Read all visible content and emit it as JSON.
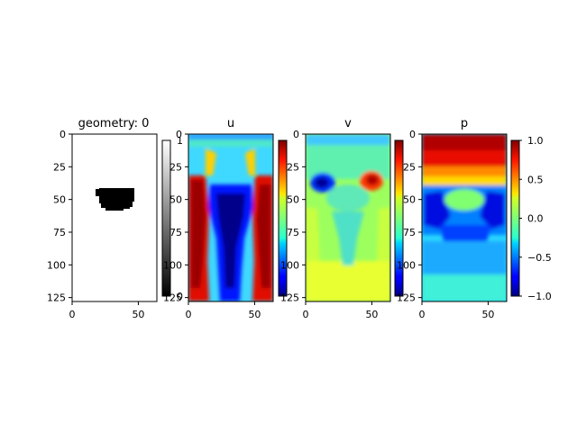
{
  "chart_data": [
    {
      "type": "heatmap",
      "title": "geometry: 0",
      "field": "geometry",
      "colormap": "gray",
      "xlim": [
        0,
        64
      ],
      "ylim": [
        128,
        0
      ],
      "xticks": [
        "0",
        "50"
      ],
      "yticks": [
        "0",
        "25",
        "50",
        "75",
        "100",
        "125"
      ],
      "colorbar": {
        "range": [
          0,
          1
        ],
        "ticks": [
          "1",
          "0"
        ]
      },
      "obstacle": {
        "x_range": [
          18,
          50
        ],
        "y_range": [
          42,
          58
        ],
        "value": 0,
        "background_value": 1
      }
    },
    {
      "type": "heatmap",
      "title": "u",
      "field": "u",
      "colormap": "jet",
      "xlim": [
        0,
        64
      ],
      "ylim": [
        128,
        0
      ],
      "xticks": [
        "0",
        "50"
      ],
      "yticks": [
        "0",
        "25",
        "50",
        "75",
        "100",
        "125"
      ],
      "colorbar": {
        "range": [
          0,
          1
        ],
        "ticks": [
          "1",
          "0"
        ]
      }
    },
    {
      "type": "heatmap",
      "title": "v",
      "field": "v",
      "colormap": "jet",
      "xlim": [
        0,
        64
      ],
      "ylim": [
        128,
        0
      ],
      "xticks": [
        "0",
        "50"
      ],
      "yticks": [
        "0",
        "25",
        "50",
        "75",
        "100",
        "125"
      ],
      "colorbar": {
        "range": [
          0,
          1
        ],
        "ticks": [
          "1"
        ]
      }
    },
    {
      "type": "heatmap",
      "title": "p",
      "field": "p",
      "colormap": "jet",
      "xlim": [
        0,
        64
      ],
      "ylim": [
        128,
        0
      ],
      "xticks": [
        "0",
        "50"
      ],
      "yticks": [
        "0",
        "25",
        "50",
        "75",
        "100",
        "125"
      ],
      "colorbar": {
        "range": [
          -1,
          1
        ],
        "ticks": [
          "1.0",
          "0.5",
          "0.0",
          "−0.5",
          "−1.0"
        ],
        "tick_values": [
          1.0,
          0.5,
          0.0,
          -0.5,
          -1.0
        ]
      }
    }
  ]
}
